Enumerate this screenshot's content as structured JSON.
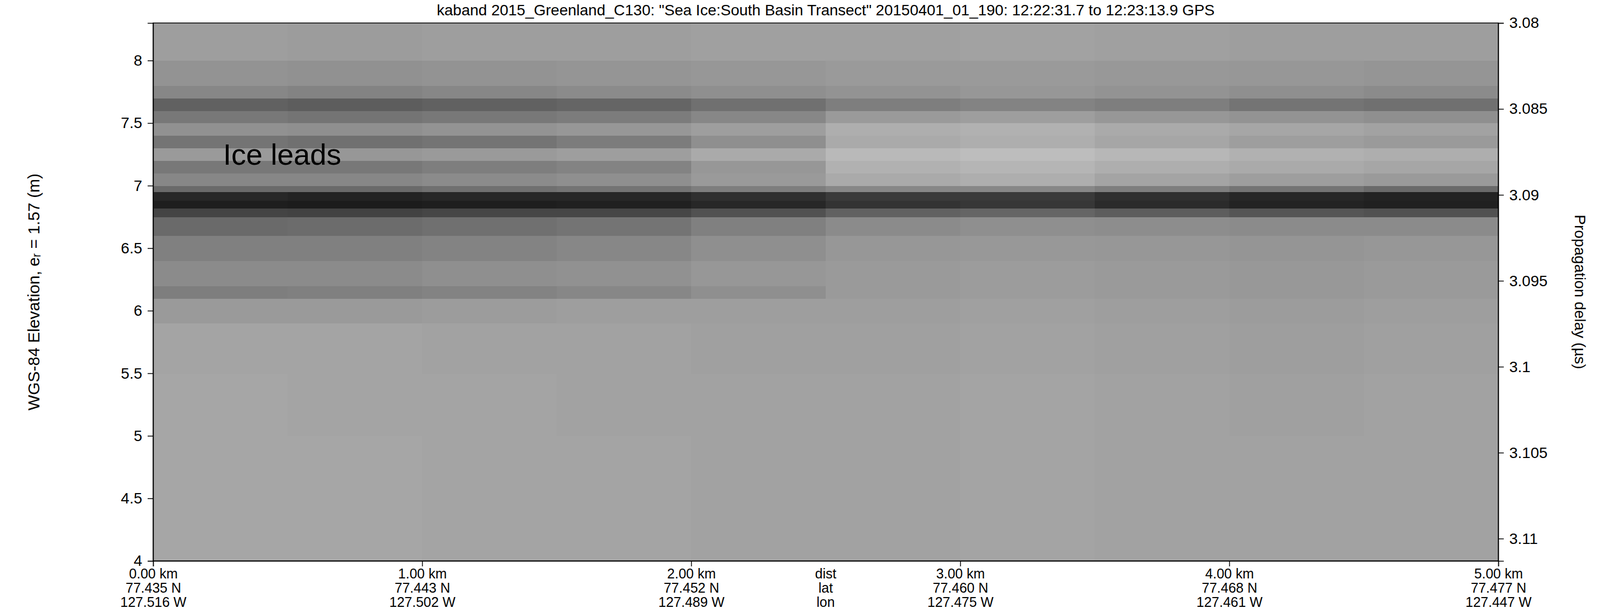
{
  "chart_data": {
    "type": "heatmap",
    "title": "kaband 2015_Greenland_C130: \"Sea Ice:South Basin Transect\"  20150401_01_190: 12:22:31.7 to 12:23:13.9 GPS",
    "ylabel": "WGS-84 Elevation, eᵣ = 1.57 (m)",
    "y2label": "Propagation delay (µs)",
    "xlim": [
      0,
      5
    ],
    "xticks": [
      {
        "value": 0,
        "label": "0.00 km"
      },
      {
        "value": 1,
        "label": "1.00 km"
      },
      {
        "value": 2,
        "label": "2.00 km"
      },
      {
        "value": 3,
        "label": "3.00 km"
      },
      {
        "value": 4,
        "label": "4.00 km"
      },
      {
        "value": 5,
        "label": "5.00 km"
      }
    ],
    "lat_labels": [
      "77.435 N",
      "77.443 N",
      "77.452 N",
      "77.460 N",
      "77.468 N",
      "77.477 N"
    ],
    "lon_labels": [
      "127.516 W",
      "127.502 W",
      "127.489 W",
      "127.475 W",
      "127.461 W",
      "127.447 W"
    ],
    "axis_row_labels": [
      "dist",
      "lat",
      "lon"
    ],
    "ylim": [
      4,
      8.3
    ],
    "yticks": [
      4,
      4.5,
      5,
      5.5,
      6,
      6.5,
      7,
      7.5,
      8
    ],
    "y2lim": [
      3.08,
      3.1113
    ],
    "y2ticks": [
      3.08,
      3.085,
      3.09,
      3.095,
      3.1,
      3.105,
      3.11
    ],
    "zlim": [
      0,
      100
    ],
    "annotations": [
      {
        "text": "Ice leads",
        "x": 0.26,
        "y": 7.25
      }
    ],
    "x_edges": [
      0,
      0.5,
      1,
      1.5,
      2,
      2.5,
      3,
      3.5,
      4,
      4.5,
      5
    ],
    "y_edges": [
      4.0,
      5.0,
      5.5,
      5.9,
      6.1,
      6.2,
      6.4,
      6.6,
      6.75,
      6.82,
      6.88,
      6.95,
      7.0,
      7.1,
      7.2,
      7.3,
      7.4,
      7.5,
      7.6,
      7.7,
      7.8,
      8.0,
      8.3
    ],
    "values": [
      [
        24,
        24,
        25,
        25,
        26,
        26,
        25,
        26,
        26,
        26
      ],
      [
        24,
        25,
        25,
        26,
        26,
        26,
        25,
        26,
        27,
        26
      ],
      [
        25,
        25,
        26,
        26,
        27,
        27,
        26,
        27,
        28,
        27
      ],
      [
        30,
        30,
        29,
        28,
        28,
        28,
        27,
        28,
        29,
        28
      ],
      [
        45,
        44,
        42,
        40,
        36,
        30,
        29,
        30,
        31,
        30
      ],
      [
        38,
        38,
        36,
        35,
        32,
        30,
        29,
        30,
        31,
        30
      ],
      [
        44,
        44,
        42,
        40,
        36,
        32,
        31,
        32,
        33,
        32
      ],
      [
        55,
        54,
        52,
        50,
        44,
        38,
        36,
        37,
        38,
        38
      ],
      [
        75,
        76,
        74,
        74,
        68,
        60,
        58,
        62,
        66,
        68
      ],
      [
        95,
        96,
        95,
        94,
        90,
        84,
        82,
        88,
        92,
        94
      ],
      [
        90,
        92,
        90,
        90,
        86,
        80,
        80,
        86,
        90,
        92
      ],
      [
        55,
        55,
        52,
        50,
        45,
        40,
        40,
        45,
        50,
        55
      ],
      [
        40,
        40,
        38,
        36,
        30,
        22,
        20,
        25,
        28,
        30
      ],
      [
        48,
        48,
        45,
        42,
        32,
        18,
        16,
        20,
        22,
        24
      ],
      [
        30,
        32,
        30,
        28,
        22,
        14,
        12,
        15,
        18,
        20
      ],
      [
        50,
        52,
        50,
        46,
        36,
        22,
        20,
        24,
        28,
        30
      ],
      [
        35,
        36,
        34,
        32,
        28,
        20,
        18,
        22,
        24,
        26
      ],
      [
        48,
        50,
        48,
        46,
        40,
        30,
        28,
        32,
        34,
        36
      ],
      [
        60,
        62,
        60,
        58,
        52,
        45,
        42,
        45,
        50,
        52
      ],
      [
        40,
        42,
        40,
        38,
        36,
        34,
        32,
        34,
        36,
        38
      ],
      [
        34,
        35,
        34,
        33,
        32,
        30,
        30,
        31,
        32,
        33
      ],
      [
        28,
        29,
        28,
        28,
        27,
        27,
        26,
        27,
        28,
        28
      ]
    ]
  }
}
